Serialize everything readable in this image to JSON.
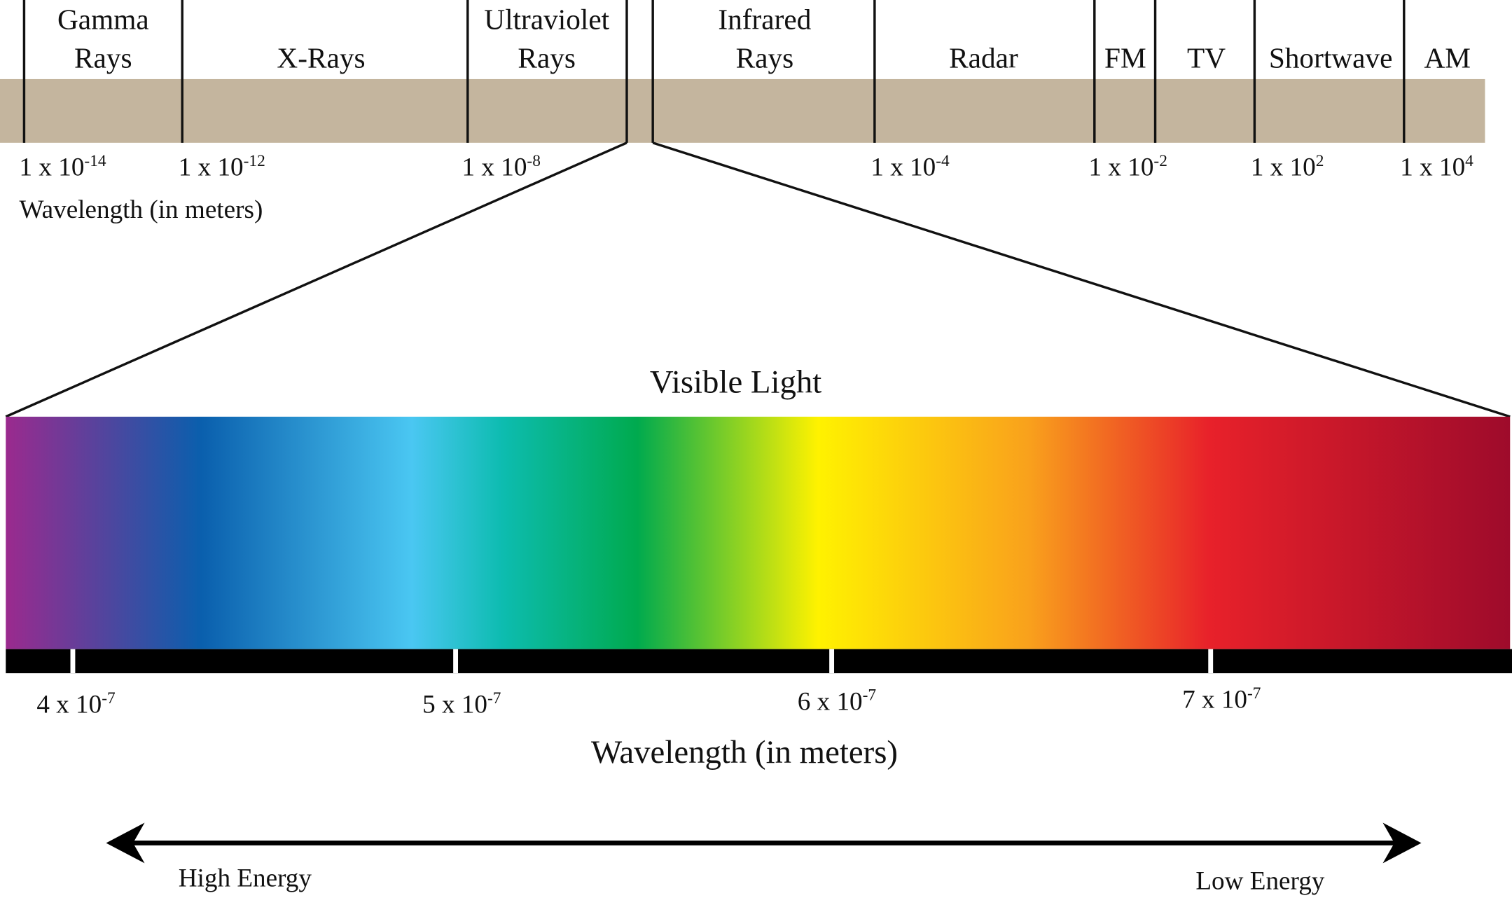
{
  "spectrum": {
    "regions": [
      [
        "Gamma",
        "Rays"
      ],
      [
        "X-Rays"
      ],
      [
        "Ultraviolet",
        "Rays"
      ],
      [
        "Infrared",
        "Rays"
      ],
      [
        "Radar"
      ],
      [
        "FM"
      ],
      [
        "TV"
      ],
      [
        "Shortwave"
      ],
      [
        "AM"
      ]
    ],
    "ticks": [
      {
        "base": "1 x 10",
        "exponent": "-14"
      },
      {
        "base": "1 x 10",
        "exponent": "-12"
      },
      {
        "base": "1 x 10",
        "exponent": "-8"
      },
      {
        "base": "1 x 10",
        "exponent": "-4"
      },
      {
        "base": "1 x 10",
        "exponent": "-2"
      },
      {
        "base": "1 x 10",
        "exponent": "2"
      },
      {
        "base": "1 x 10",
        "exponent": "4"
      }
    ],
    "axis_label": "Wavelength (in meters)"
  },
  "visible": {
    "title": "Visible Light",
    "ticks": [
      {
        "base": "4 x 10",
        "exponent": "-7"
      },
      {
        "base": "5 x 10",
        "exponent": "-7"
      },
      {
        "base": "6 x 10",
        "exponent": "-7"
      },
      {
        "base": "7 x 10",
        "exponent": "-7"
      }
    ],
    "axis_label": "Wavelength (in meters)"
  },
  "energy": {
    "high": "High Energy",
    "low": "Low Energy"
  }
}
